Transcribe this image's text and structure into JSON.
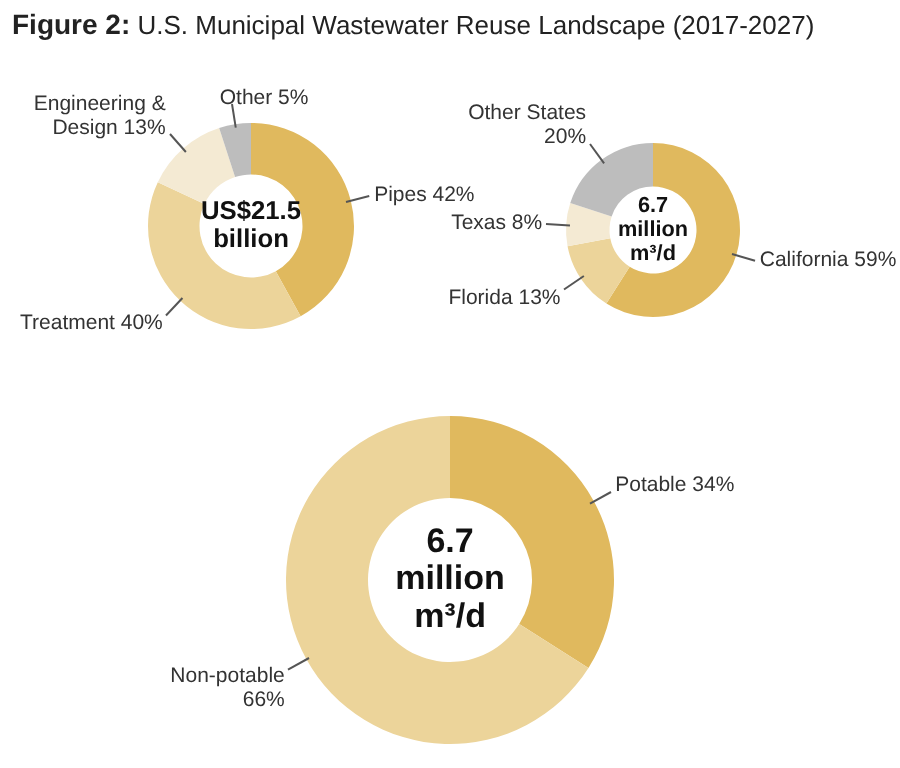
{
  "chart_data": [
    {
      "type": "donut",
      "title": "Figure 2: U.S. Municipal Wastewater Reuse Landscape (2017-2027)",
      "categories": [
        "Pipes 42%",
        "Treatment 40%",
        "Engineering & Design 13%",
        "Other 5%"
      ],
      "values": [
        42,
        40,
        13,
        5
      ],
      "colors": [
        "#e0b95e",
        "#ecd49a",
        "#f4ead3",
        "#bdbdbd"
      ],
      "annotations": [
        "US$21.5 billion"
      ],
      "legend": false
    },
    {
      "type": "donut",
      "categories": [
        "California 59%",
        "Florida 13%",
        "Texas 8%",
        "Other States 20%"
      ],
      "values": [
        59,
        13,
        8,
        20
      ],
      "colors": [
        "#e0b95e",
        "#ecd49a",
        "#f4ead3",
        "#bdbdbd"
      ],
      "annotations": [
        "6.7 million m³/d"
      ],
      "legend": false
    },
    {
      "type": "donut",
      "categories": [
        "Potable 34%",
        "Non-potable 66%"
      ],
      "values": [
        34,
        66
      ],
      "colors": [
        "#e0b95e",
        "#ecd49a"
      ],
      "annotations": [
        "6.7 million m³/d"
      ],
      "legend": false
    }
  ]
}
